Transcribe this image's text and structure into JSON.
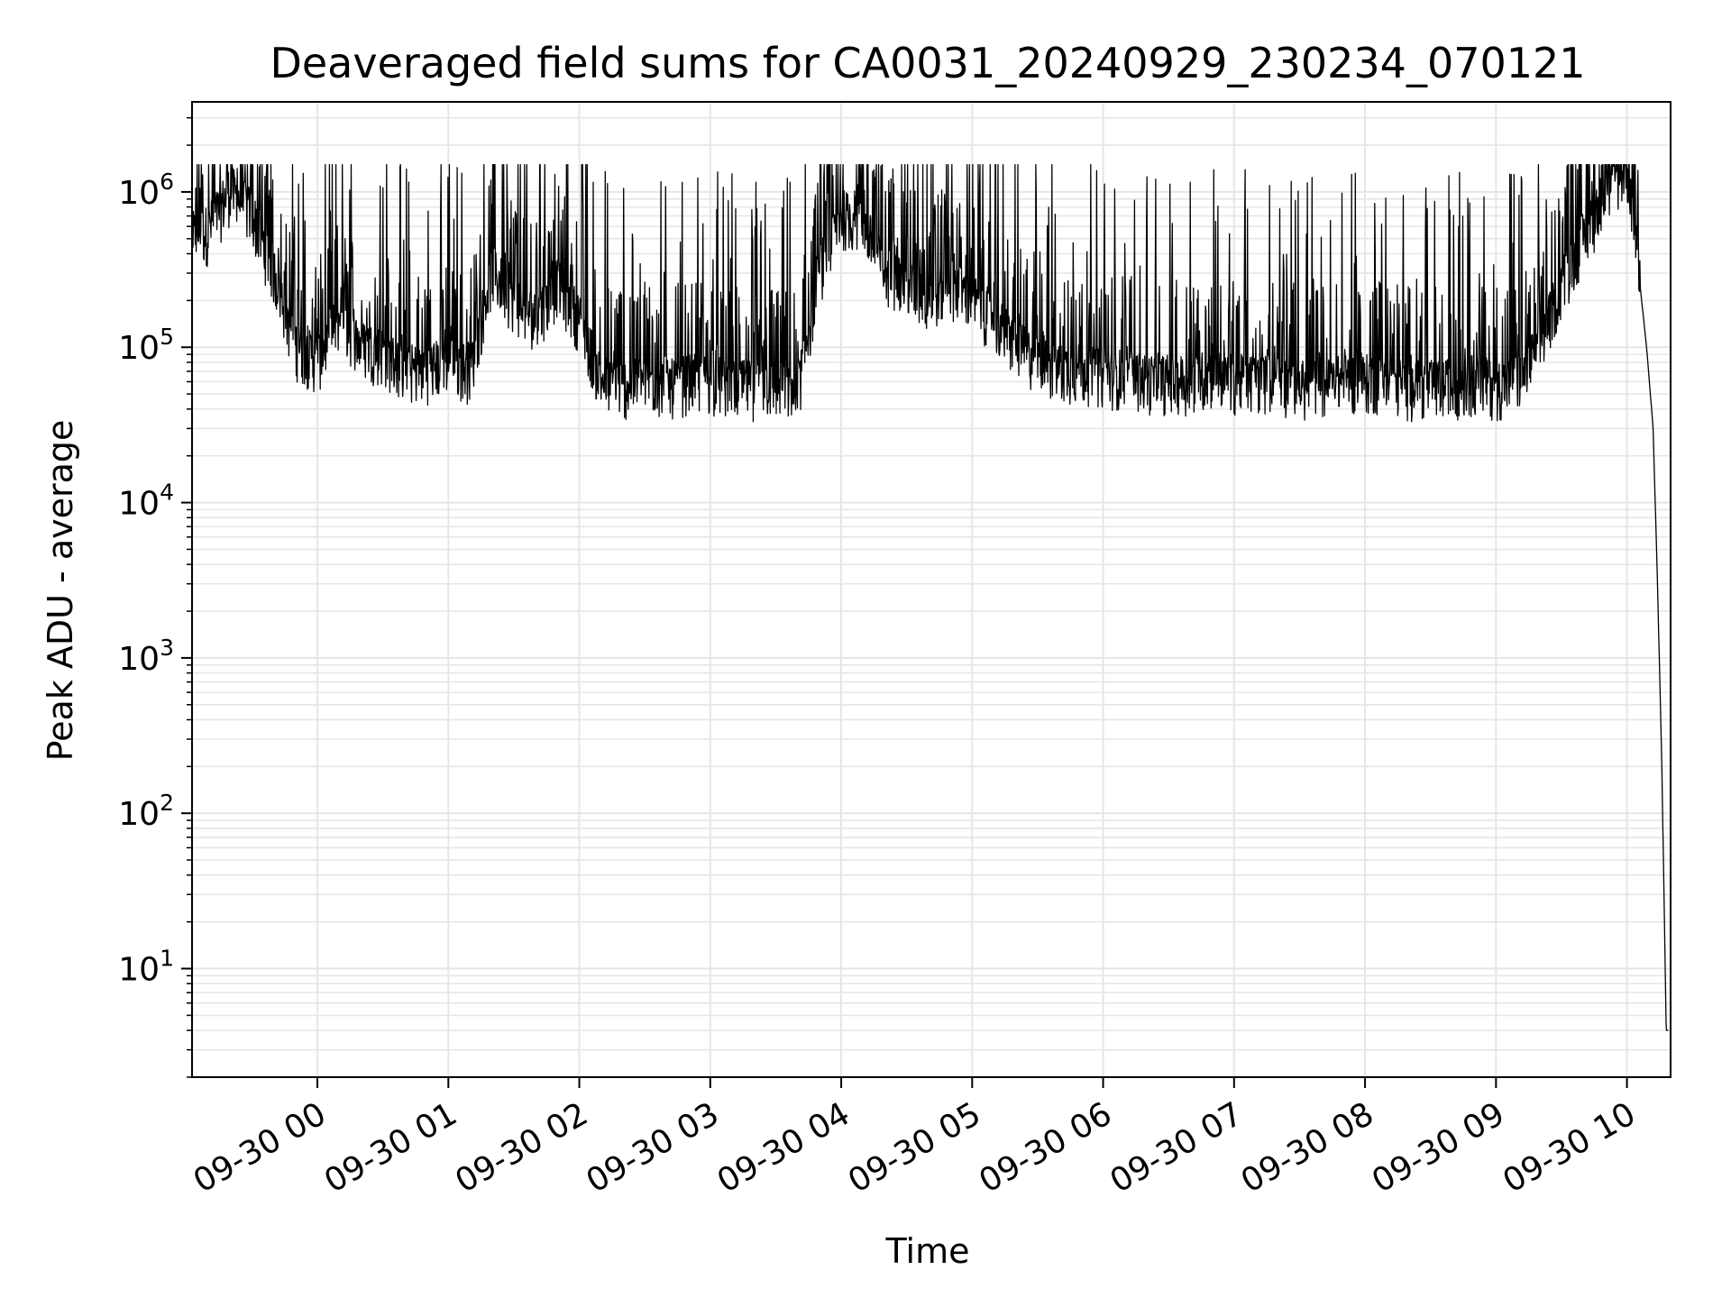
{
  "chart_data": {
    "type": "line",
    "title": "Deaveraged field sums for CA0031_20240929_230234_070121",
    "xlabel": "Time",
    "ylabel": "Peak ADU - average",
    "yscale": "log",
    "grid": true,
    "grid_minor": true,
    "ylim": [
      2,
      3800000
    ],
    "xlim": [
      "2024-09-29 23:02:34",
      "2024-09-30 10:20:00"
    ],
    "x_ticks": [
      "2024-09-30 00:00",
      "2024-09-30 01:00",
      "2024-09-30 02:00",
      "2024-09-30 03:00",
      "2024-09-30 04:00",
      "2024-09-30 05:00",
      "2024-09-30 06:00",
      "2024-09-30 07:00",
      "2024-09-30 08:00",
      "2024-09-30 09:00",
      "2024-09-30 10:00"
    ],
    "x_tick_labels": [
      "09-30 00",
      "09-30 01",
      "09-30 02",
      "09-30 03",
      "09-30 04",
      "09-30 05",
      "09-30 06",
      "09-30 07",
      "09-30 08",
      "09-30 09",
      "09-30 10"
    ],
    "y_tick_labels": [
      {
        "value": 10,
        "base": "10",
        "exp": "1"
      },
      {
        "value": 100,
        "base": "10",
        "exp": "2"
      },
      {
        "value": 1000,
        "base": "10",
        "exp": "3"
      },
      {
        "value": 10000,
        "base": "10",
        "exp": "4"
      },
      {
        "value": 100000,
        "base": "10",
        "exp": "5"
      },
      {
        "value": 1000000,
        "base": "10",
        "exp": "6"
      }
    ],
    "line_color": "#000000",
    "grid_color": "#e6e6e6",
    "series": [
      {
        "x": [
          "2024-09-29 23:03",
          "2024-09-29 23:10",
          "2024-09-29 23:20",
          "2024-09-29 23:30",
          "2024-09-29 23:40",
          "2024-09-29 23:50",
          "2024-09-30 00:00",
          "2024-09-30 00:10",
          "2024-09-30 00:20",
          "2024-09-30 00:30",
          "2024-09-30 00:40",
          "2024-09-30 00:50",
          "2024-09-30 01:00",
          "2024-09-30 01:10",
          "2024-09-30 01:20",
          "2024-09-30 01:30",
          "2024-09-30 01:40",
          "2024-09-30 01:50",
          "2024-09-30 02:00",
          "2024-09-30 02:10",
          "2024-09-30 02:20",
          "2024-09-30 02:30",
          "2024-09-30 02:40",
          "2024-09-30 02:50",
          "2024-09-30 03:00",
          "2024-09-30 03:10",
          "2024-09-30 03:20",
          "2024-09-30 03:30",
          "2024-09-30 03:40",
          "2024-09-30 03:50",
          "2024-09-30 04:00",
          "2024-09-30 04:10",
          "2024-09-30 04:20",
          "2024-09-30 04:30",
          "2024-09-30 04:40",
          "2024-09-30 04:50",
          "2024-09-30 05:00",
          "2024-09-30 05:10",
          "2024-09-30 05:20",
          "2024-09-30 05:30",
          "2024-09-30 05:40",
          "2024-09-30 05:50",
          "2024-09-30 06:00",
          "2024-09-30 06:10",
          "2024-09-30 06:20",
          "2024-09-30 06:30",
          "2024-09-30 06:40",
          "2024-09-30 06:50",
          "2024-09-30 07:00",
          "2024-09-30 07:10",
          "2024-09-30 07:20",
          "2024-09-30 07:30",
          "2024-09-30 07:40",
          "2024-09-30 07:50",
          "2024-09-30 08:00",
          "2024-09-30 08:10",
          "2024-09-30 08:20",
          "2024-09-30 08:30",
          "2024-09-30 08:40",
          "2024-09-30 08:50",
          "2024-09-30 09:00",
          "2024-09-30 09:10",
          "2024-09-30 09:20",
          "2024-09-30 09:30",
          "2024-09-30 09:40",
          "2024-09-30 09:50",
          "2024-09-30 09:55",
          "2024-09-30 10:00",
          "2024-09-30 10:03",
          "2024-09-30 10:06",
          "2024-09-30 10:09",
          "2024-09-30 10:12",
          "2024-09-30 10:14",
          "2024-09-30 10:16",
          "2024-09-30 10:18",
          "2024-09-30 10:19"
        ],
        "y": [
          500000,
          550000,
          1000000,
          700000,
          300000,
          100000,
          80000,
          150000,
          100000,
          90000,
          70000,
          70000,
          80000,
          70000,
          300000,
          200000,
          150000,
          250000,
          150000,
          60000,
          55000,
          60000,
          55000,
          60000,
          60000,
          55000,
          55000,
          55000,
          50000,
          300000,
          700000,
          600000,
          300000,
          250000,
          200000,
          250000,
          200000,
          150000,
          100000,
          80000,
          70000,
          70000,
          65000,
          65000,
          60000,
          60000,
          60000,
          65000,
          60000,
          60000,
          60000,
          55000,
          55000,
          60000,
          60000,
          60000,
          55000,
          55000,
          55000,
          60000,
          55000,
          60000,
          100000,
          250000,
          500000,
          900000,
          1200000,
          1400000,
          700000,
          250000,
          100000,
          30000,
          3000,
          200,
          4,
          4
        ]
      }
    ]
  }
}
